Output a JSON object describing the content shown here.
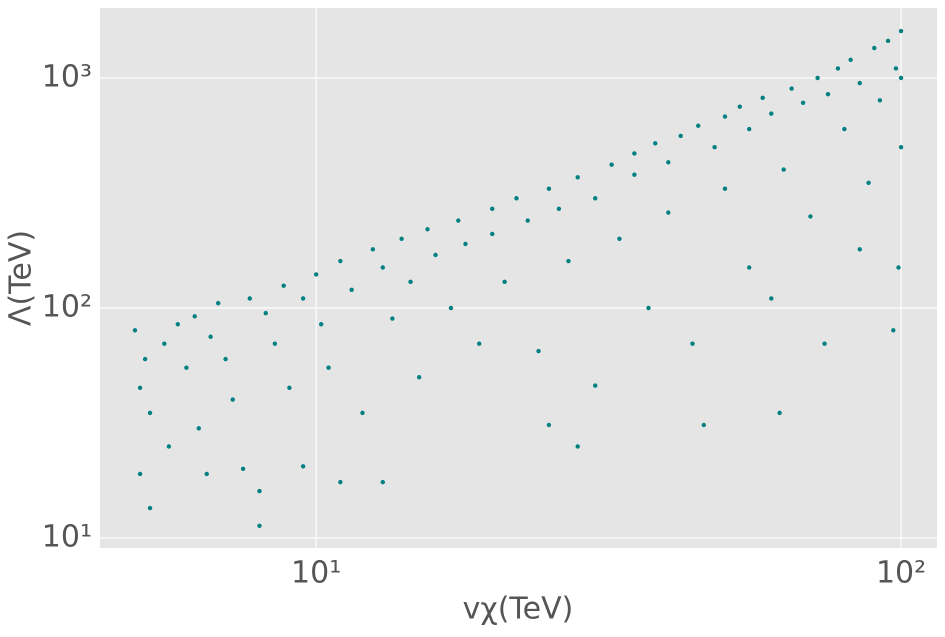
{
  "chart_data": {
    "type": "scatter",
    "x_label": "vχ(TeV)",
    "y_label": "Λ(TeV)",
    "x_scale": "log",
    "y_scale": "log",
    "grid": true,
    "color": "#008080",
    "xlim": [
      4.27,
      115.2
    ],
    "ylim": [
      9.05,
      2015
    ],
    "xticks": [
      {
        "value": 10,
        "label": "10¹"
      },
      {
        "value": 100,
        "label": "10²"
      }
    ],
    "yticks": [
      {
        "value": 10,
        "label": "10¹"
      },
      {
        "value": 100,
        "label": "10²"
      },
      {
        "value": 1000,
        "label": "10³"
      }
    ],
    "x": [
      4.9,
      5.0,
      5.1,
      5.2,
      5.0,
      5.2,
      5.5,
      5.6,
      5.8,
      6.0,
      6.2,
      6.3,
      6.5,
      6.6,
      6.8,
      7.0,
      7.2,
      7.5,
      7.7,
      8.0,
      8.0,
      8.2,
      8.5,
      8.8,
      9.0,
      9.5,
      9.5,
      10,
      10.2,
      10.5,
      11,
      11,
      11.5,
      12,
      12.5,
      13,
      13,
      13.5,
      14,
      14.5,
      15,
      15.5,
      16,
      17,
      17.5,
      18,
      19,
      20,
      20,
      21,
      22,
      23,
      24,
      25,
      25,
      26,
      27,
      28,
      28,
      30,
      30,
      32,
      33,
      35,
      35,
      37,
      38,
      40,
      40,
      42,
      44,
      45,
      46,
      48,
      50,
      50,
      53,
      55,
      55,
      58,
      60,
      62,
      63,
      65,
      68,
      70,
      72,
      74,
      75,
      78,
      80,
      82,
      85,
      88,
      90,
      92,
      95,
      97,
      98,
      99,
      100,
      100,
      100,
      60,
      85
    ],
    "values": [
      80,
      45,
      60,
      35,
      19,
      13.5,
      70,
      25,
      85,
      55,
      92,
      30,
      19,
      75,
      105,
      60,
      40,
      20,
      110,
      16,
      11.3,
      95,
      70,
      125,
      45,
      20.5,
      110,
      140,
      85,
      55,
      17.5,
      160,
      120,
      35,
      180,
      17.5,
      150,
      90,
      200,
      130,
      50,
      220,
      170,
      100,
      240,
      190,
      70,
      270,
      210,
      130,
      300,
      240,
      65,
      31,
      330,
      270,
      160,
      25,
      370,
      300,
      46,
      420,
      200,
      470,
      380,
      100,
      520,
      430,
      260,
      560,
      70,
      620,
      31,
      500,
      680,
      330,
      750,
      600,
      150,
      820,
      700,
      35,
      400,
      900,
      780,
      250,
      1000,
      70,
      850,
      1100,
      600,
      1200,
      950,
      350,
      1350,
      800,
      1450,
      80,
      1100,
      150,
      1600,
      500,
      1000,
      110,
      180
    ]
  }
}
